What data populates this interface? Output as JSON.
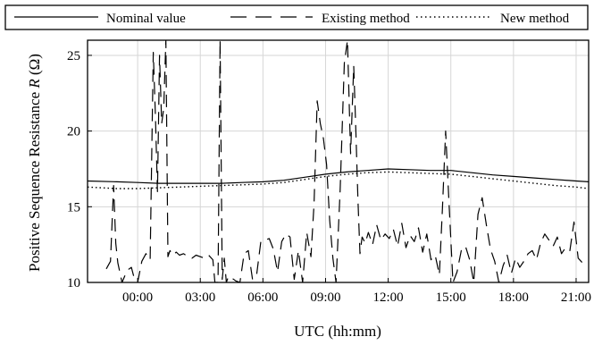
{
  "chart_data": {
    "type": "line",
    "title": "",
    "xlabel": "UTC (hh:mm)",
    "ylabel": "Positive Sequence Resistance R (Ω)",
    "ylabel_parts": [
      "Positive Sequence Resistance ",
      "R",
      " (Ω)"
    ],
    "xlim_hours": [
      -2.4,
      21.6
    ],
    "ylim": [
      10,
      26
    ],
    "x_unit": "hours (UTC)",
    "x_tick_labels": [
      "00:00",
      "03:00",
      "06:00",
      "09:00",
      "12:00",
      "15:00",
      "18:00",
      "21:00"
    ],
    "x_tick_hours": [
      0,
      3,
      6,
      9,
      12,
      15,
      18,
      21
    ],
    "y_ticks": [
      10,
      15,
      20,
      25
    ],
    "grid": true,
    "legend_position": "top, outside plot",
    "series": [
      {
        "name": "Nominal value",
        "style": "solid",
        "color": "#000000",
        "x": [
          -2.4,
          -1,
          0,
          1,
          2,
          3,
          4,
          5,
          6,
          7,
          8,
          9,
          10,
          11,
          12,
          13,
          14,
          15,
          16,
          17,
          18,
          19,
          20,
          21,
          21.6
        ],
        "y": [
          16.7,
          16.65,
          16.6,
          16.55,
          16.55,
          16.55,
          16.55,
          16.6,
          16.65,
          16.75,
          16.95,
          17.15,
          17.3,
          17.4,
          17.5,
          17.45,
          17.4,
          17.4,
          17.25,
          17.1,
          17.0,
          16.9,
          16.8,
          16.7,
          16.65
        ]
      },
      {
        "name": "Existing method",
        "style": "dashed",
        "color": "#000000",
        "x": [
          -1.5,
          -1.3,
          -1.15,
          -1.05,
          -0.95,
          -0.75,
          -0.5,
          -0.3,
          -0.15,
          0.0,
          0.2,
          0.4,
          0.6,
          0.75,
          0.85,
          0.95,
          1.05,
          1.15,
          1.25,
          1.35,
          1.45,
          1.55,
          1.7,
          1.85,
          2.0,
          2.2,
          2.4,
          2.6,
          2.8,
          3.0,
          3.2,
          3.4,
          3.6,
          3.7,
          3.85,
          3.95,
          4.05,
          4.15,
          4.25,
          4.35,
          4.5,
          4.7,
          4.9,
          5.1,
          5.3,
          5.5,
          5.7,
          5.9,
          6.1,
          6.3,
          6.5,
          6.7,
          6.9,
          7.1,
          7.3,
          7.5,
          7.7,
          7.9,
          8.1,
          8.3,
          8.45,
          8.6,
          8.75,
          8.9,
          9.05,
          9.2,
          9.35,
          9.5,
          9.7,
          9.9,
          10.05,
          10.2,
          10.35,
          10.45,
          10.55,
          10.65,
          10.75,
          10.9,
          11.05,
          11.25,
          11.45,
          11.65,
          11.85,
          12.05,
          12.25,
          12.45,
          12.65,
          12.85,
          13.05,
          13.25,
          13.45,
          13.65,
          13.85,
          14.05,
          14.25,
          14.45,
          14.6,
          14.75,
          14.9,
          15.1,
          15.3,
          15.5,
          15.7,
          15.9,
          16.1,
          16.3,
          16.5,
          16.7,
          16.9,
          17.1,
          17.3,
          17.5,
          17.7,
          17.9,
          18.1,
          18.3,
          18.5,
          18.7,
          18.9,
          19.1,
          19.3,
          19.5,
          19.7,
          19.9,
          20.1,
          20.3,
          20.5,
          20.7,
          20.9,
          21.1,
          21.3,
          21.5
        ],
        "y": [
          10.9,
          11.4,
          16.4,
          12.6,
          11.3,
          10.0,
          10.8,
          11.0,
          10.2,
          10.0,
          11.4,
          11.9,
          11.5,
          25.2,
          21.0,
          16.0,
          25.0,
          20.5,
          21.5,
          26.0,
          11.7,
          12.1,
          11.8,
          12.0,
          11.8,
          11.9,
          11.7,
          11.6,
          11.8,
          11.7,
          11.6,
          11.8,
          11.5,
          10.0,
          10.0,
          26.0,
          10.2,
          11.6,
          10.0,
          10.4,
          10.3,
          10.1,
          10.0,
          11.9,
          12.1,
          10.2,
          10.5,
          12.7,
          12.8,
          12.9,
          12.2,
          10.7,
          12.7,
          13.2,
          13.0,
          10.2,
          12.1,
          10.0,
          13.3,
          11.7,
          15.2,
          22.0,
          20.5,
          19.5,
          17.8,
          14.1,
          11.6,
          10.0,
          16.1,
          24.5,
          26.0,
          18.5,
          24.3,
          20.0,
          15.5,
          11.9,
          13.0,
          12.6,
          13.3,
          12.5,
          13.8,
          12.8,
          13.2,
          12.9,
          13.5,
          12.4,
          13.9,
          12.3,
          13.1,
          12.7,
          13.6,
          12.0,
          13.2,
          11.5,
          11.8,
          10.5,
          15.0,
          20.0,
          15.6,
          10.0,
          10.7,
          12.1,
          12.4,
          11.5,
          10.0,
          14.5,
          15.6,
          13.8,
          12.2,
          11.4,
          10.0,
          11.1,
          11.8,
          10.6,
          11.6,
          11.0,
          11.4,
          11.9,
          12.1,
          11.5,
          12.6,
          13.2,
          12.8,
          12.4,
          13.0,
          11.9,
          12.3,
          12.1,
          14.0,
          11.6,
          11.3,
          11.5
        ]
      },
      {
        "name": "New method",
        "style": "dotted",
        "color": "#000000",
        "x": [
          -2.4,
          -1,
          0,
          1,
          2,
          3,
          4,
          5,
          6,
          7,
          8,
          9,
          10,
          11,
          12,
          13,
          14,
          15,
          16,
          17,
          18,
          19,
          20,
          21,
          21.6
        ],
        "y": [
          16.3,
          16.2,
          16.2,
          16.25,
          16.3,
          16.35,
          16.4,
          16.45,
          16.5,
          16.6,
          16.8,
          17.0,
          17.15,
          17.25,
          17.3,
          17.25,
          17.2,
          17.15,
          17.0,
          16.85,
          16.7,
          16.55,
          16.4,
          16.3,
          16.2
        ]
      }
    ]
  }
}
